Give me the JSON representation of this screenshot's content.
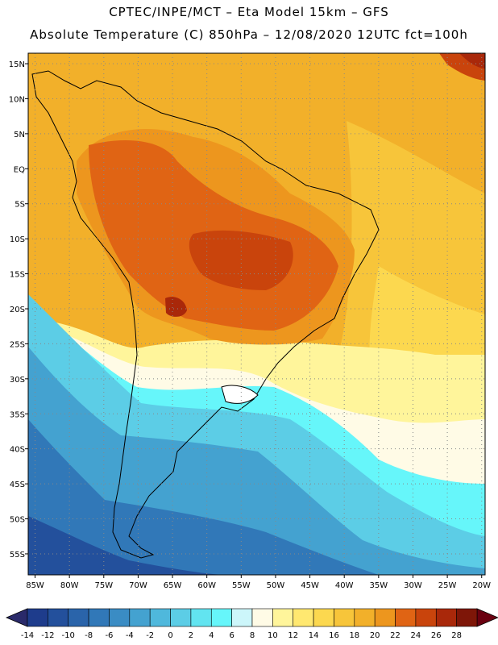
{
  "header": {
    "line1": "CPTEC/INPE/MCT –  Eta Model 15km – GFS",
    "line2": "Absolute Temperature (C) 850hPa – 12/08/2020 12UTC fct=100h"
  },
  "map": {
    "lat_labels": [
      "15N",
      "10N",
      "5N",
      "EQ",
      "5S",
      "10S",
      "15S",
      "20S",
      "25S",
      "30S",
      "35S",
      "40S",
      "45S",
      "50S",
      "55S"
    ],
    "lat_values": [
      15,
      10,
      5,
      0,
      -5,
      -10,
      -15,
      -20,
      -25,
      -30,
      -35,
      -40,
      -45,
      -50,
      -55
    ],
    "lon_labels": [
      "85W",
      "80W",
      "75W",
      "70W",
      "65W",
      "60W",
      "55W",
      "50W",
      "45W",
      "40W",
      "35W",
      "30W",
      "25W",
      "20W"
    ],
    "lon_values": [
      -85,
      -80,
      -75,
      -70,
      -65,
      -60,
      -55,
      -50,
      -45,
      -40,
      -35,
      -30,
      -25,
      -20
    ],
    "lat_range": [
      -58,
      16.5
    ],
    "lon_range": [
      -86,
      -19.5
    ]
  },
  "colorbar": {
    "labels": [
      "-14",
      "-12",
      "-10",
      "-8",
      "-6",
      "-4",
      "-2",
      "0",
      "2",
      "4",
      "6",
      "8",
      "10",
      "12",
      "14",
      "16",
      "18",
      "20",
      "22",
      "24",
      "26",
      "28"
    ],
    "colors": [
      "#1e3c8c",
      "#23509c",
      "#2a64aa",
      "#3178b8",
      "#3a8cc4",
      "#44a2d0",
      "#4fb8dc",
      "#5ccde6",
      "#62e4f0",
      "#66f6fa",
      "#ccf6fa",
      "#fffbe6",
      "#fff59b",
      "#ffe870",
      "#fcd84f",
      "#f7c53a",
      "#f2b02a",
      "#ed961e",
      "#e06414",
      "#c9440c",
      "#a9280a",
      "#7e1608"
    ],
    "low_color": "#2a2a6a",
    "high_color": "#6a0010"
  }
}
